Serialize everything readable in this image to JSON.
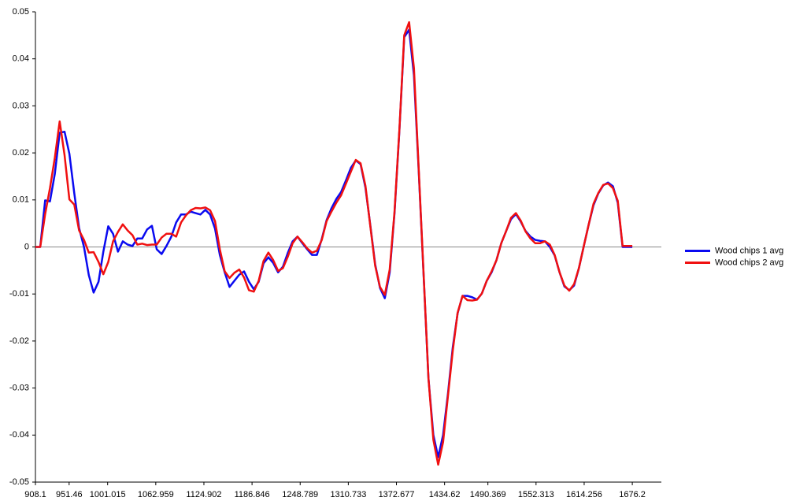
{
  "chart_data": {
    "type": "line",
    "x": [
      908.1,
      914.3,
      920.6,
      926.8,
      933.1,
      939.3,
      945.6,
      951.8,
      958.1,
      964.3,
      970.6,
      976.8,
      983.0,
      989.3,
      995.5,
      1001.8,
      1008.0,
      1014.3,
      1020.5,
      1026.8,
      1033.0,
      1039.2,
      1045.5,
      1051.7,
      1058.0,
      1064.2,
      1070.5,
      1076.7,
      1083.0,
      1089.2,
      1095.5,
      1101.7,
      1107.9,
      1114.2,
      1120.4,
      1126.7,
      1132.9,
      1139.2,
      1145.4,
      1151.7,
      1157.9,
      1164.1,
      1170.4,
      1176.6,
      1182.9,
      1189.1,
      1195.4,
      1201.6,
      1207.9,
      1214.1,
      1220.4,
      1226.6,
      1232.8,
      1239.1,
      1245.3,
      1251.6,
      1257.8,
      1264.1,
      1270.3,
      1276.6,
      1282.8,
      1289.0,
      1295.3,
      1301.5,
      1307.8,
      1314.0,
      1320.3,
      1326.5,
      1332.8,
      1339.0,
      1345.3,
      1351.5,
      1357.7,
      1364.0,
      1370.2,
      1376.5,
      1382.7,
      1389.0,
      1395.2,
      1401.5,
      1407.7,
      1413.9,
      1420.2,
      1426.4,
      1432.7,
      1438.9,
      1445.2,
      1451.4,
      1457.7,
      1463.9,
      1470.2,
      1476.4,
      1482.6,
      1488.9,
      1495.1,
      1501.4,
      1507.6,
      1513.9,
      1520.1,
      1526.4,
      1532.6,
      1538.8,
      1545.1,
      1551.3,
      1557.6,
      1563.8,
      1570.1,
      1576.3,
      1582.6,
      1588.8,
      1595.1,
      1601.3,
      1607.5,
      1613.8,
      1620.0,
      1626.3,
      1632.5,
      1638.8,
      1645.0,
      1651.3,
      1657.5,
      1663.7,
      1670.0,
      1676.2
    ],
    "series": [
      {
        "name": "Wood chips 1 avg",
        "color": "#0a0af0",
        "values": [
          0,
          0,
          0.0099,
          0.0097,
          0.0156,
          0.0243,
          0.0245,
          0.0198,
          0.0114,
          0.004,
          0,
          -0.006,
          -0.0097,
          -0.0074,
          -0.001,
          0.0044,
          0.0028,
          -0.001,
          0.0012,
          0.0005,
          0.0002,
          0.0018,
          0.0018,
          0.0037,
          0.0045,
          -0.0005,
          -0.0015,
          0.0002,
          0.0022,
          0.0052,
          0.0069,
          0.0069,
          0.0075,
          0.0072,
          0.0069,
          0.0079,
          0.0069,
          0.0039,
          -0.0017,
          -0.0054,
          -0.0085,
          -0.0072,
          -0.0059,
          -0.0052,
          -0.0074,
          -0.009,
          -0.0074,
          -0.0035,
          -0.0022,
          -0.0034,
          -0.0054,
          -0.0042,
          -0.0013,
          0.0012,
          0.0022,
          0.0008,
          -0.0005,
          -0.0017,
          -0.0017,
          0.0017,
          0.0057,
          0.0082,
          0.0102,
          0.0117,
          0.0142,
          0.0168,
          0.0184,
          0.0176,
          0.0126,
          0.0047,
          -0.0037,
          -0.0087,
          -0.0109,
          -0.0054,
          0.0072,
          0.0248,
          0.0446,
          0.0462,
          0.0365,
          0.0156,
          -0.0062,
          -0.028,
          -0.04,
          -0.0447,
          -0.04,
          -0.0313,
          -0.0213,
          -0.0141,
          -0.0104,
          -0.0104,
          -0.0107,
          -0.0112,
          -0.0099,
          -0.0072,
          -0.0054,
          -0.0028,
          0.0008,
          0.0034,
          0.0059,
          0.007,
          0.0054,
          0.0034,
          0.0022,
          0.0015,
          0.0013,
          0.0012,
          0,
          -0.0018,
          -0.0054,
          -0.0084,
          -0.0092,
          -0.0082,
          -0.0045,
          0.0002,
          0.0047,
          0.0089,
          0.0114,
          0.0131,
          0.0137,
          0.0129,
          0.0094,
          0,
          0,
          0
        ]
      },
      {
        "name": "Wood chips 2 avg",
        "color": "#f01010",
        "values": [
          0,
          0,
          0.007,
          0.0125,
          0.019,
          0.0267,
          0.0195,
          0.0101,
          0.009,
          0.0035,
          0.0015,
          -0.0012,
          -0.0011,
          -0.0032,
          -0.0058,
          -0.0032,
          0.0012,
          0.0032,
          0.0048,
          0.0035,
          0.0025,
          0.0005,
          0.0007,
          0.0004,
          0.0005,
          0.0005,
          0.002,
          0.0028,
          0.0028,
          0.0022,
          0.0052,
          0.0067,
          0.0078,
          0.0083,
          0.0082,
          0.0084,
          0.0078,
          0.0055,
          -0.0005,
          -0.0052,
          -0.0066,
          -0.0055,
          -0.0048,
          -0.0065,
          -0.0092,
          -0.0095,
          -0.0072,
          -0.003,
          -0.0012,
          -0.0028,
          -0.0051,
          -0.0045,
          -0.0021,
          0.0008,
          0.0022,
          0.001,
          -0.0003,
          -0.0012,
          -0.0008,
          0.0015,
          0.0055,
          0.0075,
          0.0094,
          0.011,
          0.0135,
          0.016,
          0.0185,
          0.0178,
          0.013,
          0.0045,
          -0.004,
          -0.0085,
          -0.0102,
          -0.0048,
          0.0075,
          0.025,
          0.045,
          0.0478,
          0.038,
          0.016,
          -0.006,
          -0.028,
          -0.041,
          -0.0463,
          -0.0415,
          -0.0318,
          -0.022,
          -0.014,
          -0.0104,
          -0.0113,
          -0.0114,
          -0.0112,
          -0.0099,
          -0.0072,
          -0.0052,
          -0.0028,
          0.0008,
          0.0034,
          0.0062,
          0.0072,
          0.0056,
          0.0033,
          0.0018,
          0.0008,
          0.0008,
          0.0012,
          0.0005,
          -0.0017,
          -0.0054,
          -0.0082,
          -0.0093,
          -0.0079,
          -0.0045,
          0.0002,
          0.0047,
          0.0092,
          0.0115,
          0.0132,
          0.0135,
          0.0125,
          0.0098,
          0.0002,
          0.0002,
          0.0002
        ]
      }
    ],
    "xlim": [
      908.1,
      1713.6
    ],
    "xticks": [
      908.1,
      951.46,
      1001.015,
      1062.959,
      1124.902,
      1186.846,
      1248.789,
      1310.733,
      1372.677,
      1434.62,
      1490.369,
      1552.313,
      1614.256,
      1676.2
    ],
    "ylim": [
      -0.05,
      0.05
    ],
    "yticks": [
      -0.05,
      -0.04,
      -0.03,
      -0.02,
      -0.01,
      0,
      0.01,
      0.02,
      0.03,
      0.04,
      0.05
    ],
    "legend": "right"
  }
}
